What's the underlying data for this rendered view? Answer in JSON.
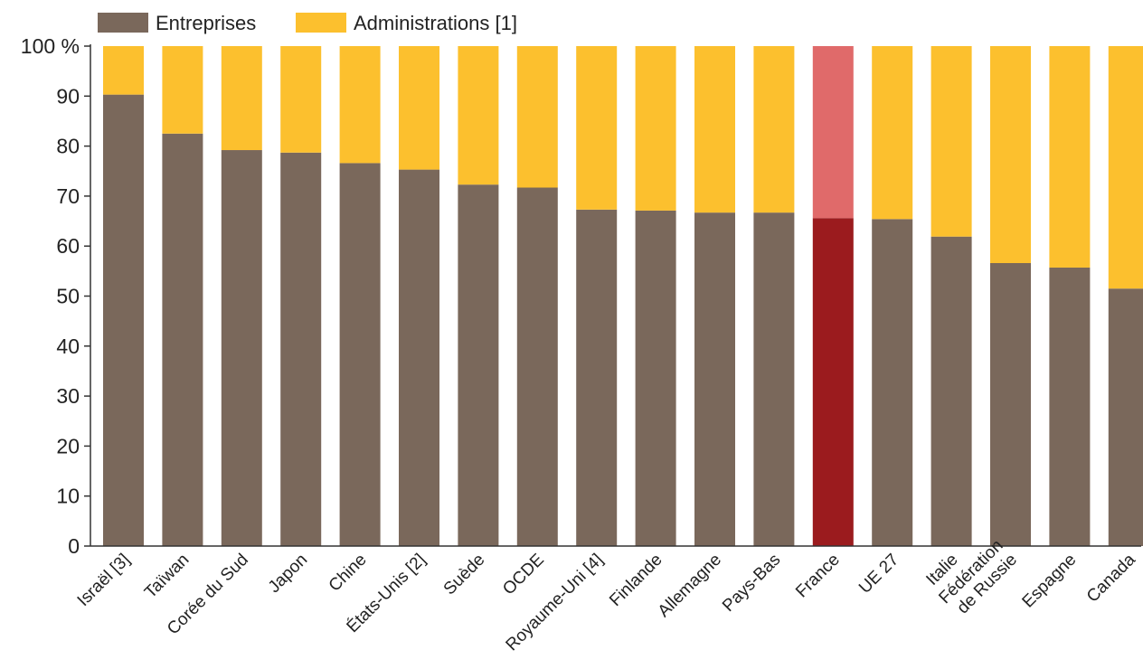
{
  "chart_data": {
    "type": "bar",
    "stacked": true,
    "categories": [
      [
        "Israël [3]"
      ],
      [
        "Taïwan"
      ],
      [
        "Corée du Sud"
      ],
      [
        "Japon"
      ],
      [
        "Chine"
      ],
      [
        "États-Unis [2]"
      ],
      [
        "Suède"
      ],
      [
        "OCDE"
      ],
      [
        "Royaume-Uni [4]"
      ],
      [
        "Finlande"
      ],
      [
        "Allemagne"
      ],
      [
        "Pays-Bas"
      ],
      [
        "France"
      ],
      [
        "UE 27"
      ],
      [
        "Italie"
      ],
      [
        "Fédération",
        "de Russie"
      ],
      [
        "Espagne"
      ],
      [
        "Canada"
      ]
    ],
    "series": [
      {
        "name": "Entreprises",
        "color": "#7a685b",
        "values": [
          90.3,
          82.5,
          79.2,
          78.7,
          76.6,
          75.3,
          72.3,
          71.7,
          67.3,
          67.1,
          66.7,
          66.7,
          65.6,
          65.4,
          61.9,
          56.6,
          55.7,
          51.5
        ]
      },
      {
        "name": "Administrations [1]",
        "color": "#fcc02e",
        "values": [
          9.7,
          17.5,
          20.8,
          21.3,
          23.4,
          24.7,
          27.7,
          28.3,
          32.7,
          32.9,
          33.3,
          33.3,
          34.4,
          34.6,
          38.1,
          43.4,
          44.3,
          48.5
        ]
      }
    ],
    "highlight": {
      "category_index": 12,
      "colors": [
        "#9b1b1e",
        "#e06a6a"
      ]
    },
    "yticks": [
      "0",
      "10",
      "20",
      "30",
      "40",
      "50",
      "60",
      "70",
      "80",
      "90",
      "100 %"
    ],
    "ylim": [
      0,
      100
    ],
    "grid": false,
    "legend_position": "top-left",
    "xlabel": "",
    "ylabel": "",
    "title": ""
  }
}
